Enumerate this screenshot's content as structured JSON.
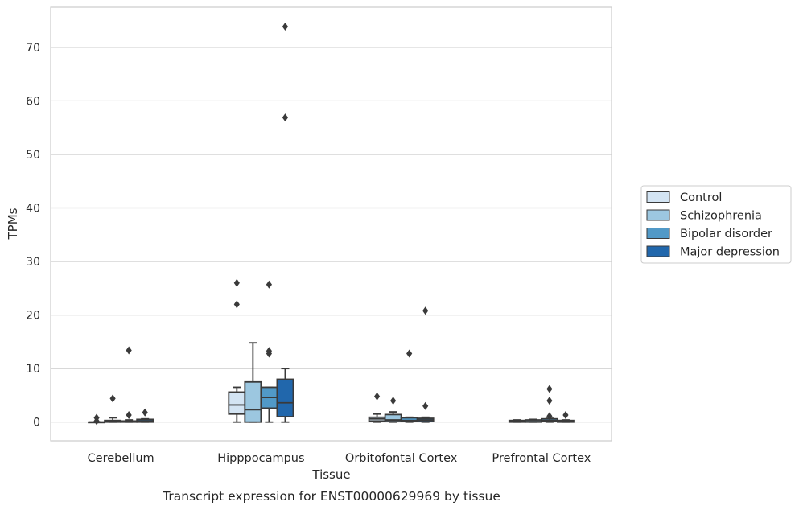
{
  "caption": "Transcript expression for ENST00000629969 by tissue",
  "chart_data": {
    "type": "boxplot",
    "xlabel": "Tissue",
    "ylabel": "TPMs",
    "ylim": [
      -3.5,
      77.5
    ],
    "yticks": [
      0,
      10,
      20,
      30,
      40,
      50,
      60,
      70
    ],
    "grid": "horizontal",
    "legend_position": "right",
    "categories": [
      "Cerebellum",
      "Hipppocampus",
      "Orbitofontal Cortex",
      "Prefrontal Cortex"
    ],
    "series": [
      {
        "name": "Control",
        "color": "#d3e4f3",
        "boxes": [
          {
            "whislo": 0,
            "q1": 0,
            "med": 0,
            "q3": 0,
            "whishi": 0,
            "fliers": [
              0.2,
              0.8
            ]
          },
          {
            "whislo": 0,
            "q1": 1.5,
            "med": 3.2,
            "q3": 5.6,
            "whishi": 6.5,
            "fliers": [
              22.0,
              26.0
            ]
          },
          {
            "whislo": 0,
            "q1": 0.2,
            "med": 0.6,
            "q3": 0.9,
            "whishi": 1.5,
            "fliers": [
              4.8
            ]
          },
          {
            "whislo": 0,
            "q1": 0,
            "med": 0.1,
            "q3": 0.3,
            "whishi": 0.4,
            "fliers": []
          }
        ]
      },
      {
        "name": "Schizophrenia",
        "color": "#9cc7e0",
        "boxes": [
          {
            "whislo": 0,
            "q1": 0,
            "med": 0.2,
            "q3": 0.3,
            "whishi": 0.8,
            "fliers": [
              4.4
            ]
          },
          {
            "whislo": 0,
            "q1": 0,
            "med": 2.3,
            "q3": 7.5,
            "whishi": 14.8,
            "fliers": []
          },
          {
            "whislo": 0,
            "q1": 0.1,
            "med": 0.4,
            "q3": 1.4,
            "whishi": 1.9,
            "fliers": [
              4.0
            ]
          },
          {
            "whislo": 0,
            "q1": 0,
            "med": 0.1,
            "q3": 0.4,
            "whishi": 0.5,
            "fliers": []
          }
        ]
      },
      {
        "name": "Bipolar disorder",
        "color": "#5199c7",
        "boxes": [
          {
            "whislo": 0,
            "q1": 0,
            "med": 0.1,
            "q3": 0.2,
            "whishi": 0.4,
            "fliers": [
              1.3,
              13.4
            ]
          },
          {
            "whislo": 0,
            "q1": 2.6,
            "med": 4.6,
            "q3": 6.5,
            "whishi": 6.5,
            "fliers": [
              12.8,
              13.3,
              25.7
            ]
          },
          {
            "whislo": 0,
            "q1": 0.1,
            "med": 0.3,
            "q3": 0.8,
            "whishi": 0.9,
            "fliers": [
              12.8
            ]
          },
          {
            "whislo": 0,
            "q1": 0.1,
            "med": 0.3,
            "q3": 0.6,
            "whishi": 0.7,
            "fliers": [
              1.1,
              4.0,
              6.2
            ]
          }
        ]
      },
      {
        "name": "Major depression",
        "color": "#2167ac",
        "boxes": [
          {
            "whislo": 0,
            "q1": 0,
            "med": 0.2,
            "q3": 0.5,
            "whishi": 0.6,
            "fliers": [
              1.8
            ]
          },
          {
            "whislo": 0,
            "q1": 1.0,
            "med": 3.6,
            "q3": 8.0,
            "whishi": 10.0,
            "fliers": [
              56.9,
              73.9
            ]
          },
          {
            "whislo": 0,
            "q1": 0.1,
            "med": 0.4,
            "q3": 0.7,
            "whishi": 0.9,
            "fliers": [
              3.0,
              20.8
            ]
          },
          {
            "whislo": 0,
            "q1": 0,
            "med": 0.1,
            "q3": 0.3,
            "whishi": 0.4,
            "fliers": [
              1.3
            ]
          }
        ]
      }
    ]
  }
}
